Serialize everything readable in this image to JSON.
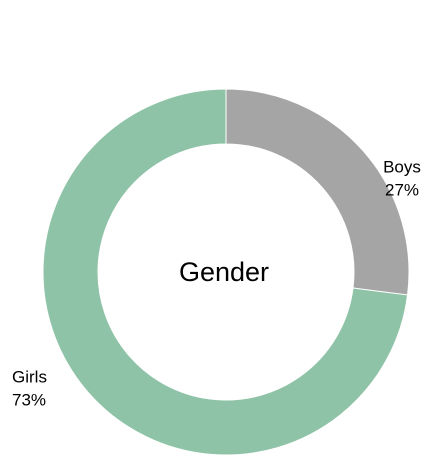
{
  "chart_data": {
    "type": "pie",
    "donut": true,
    "title": "Gender",
    "categories": [
      "Boys",
      "Girls"
    ],
    "values": [
      27,
      73
    ],
    "value_labels": [
      "27%",
      "73%"
    ],
    "colors": [
      "#a5a5a5",
      "#8fc3a7"
    ]
  }
}
